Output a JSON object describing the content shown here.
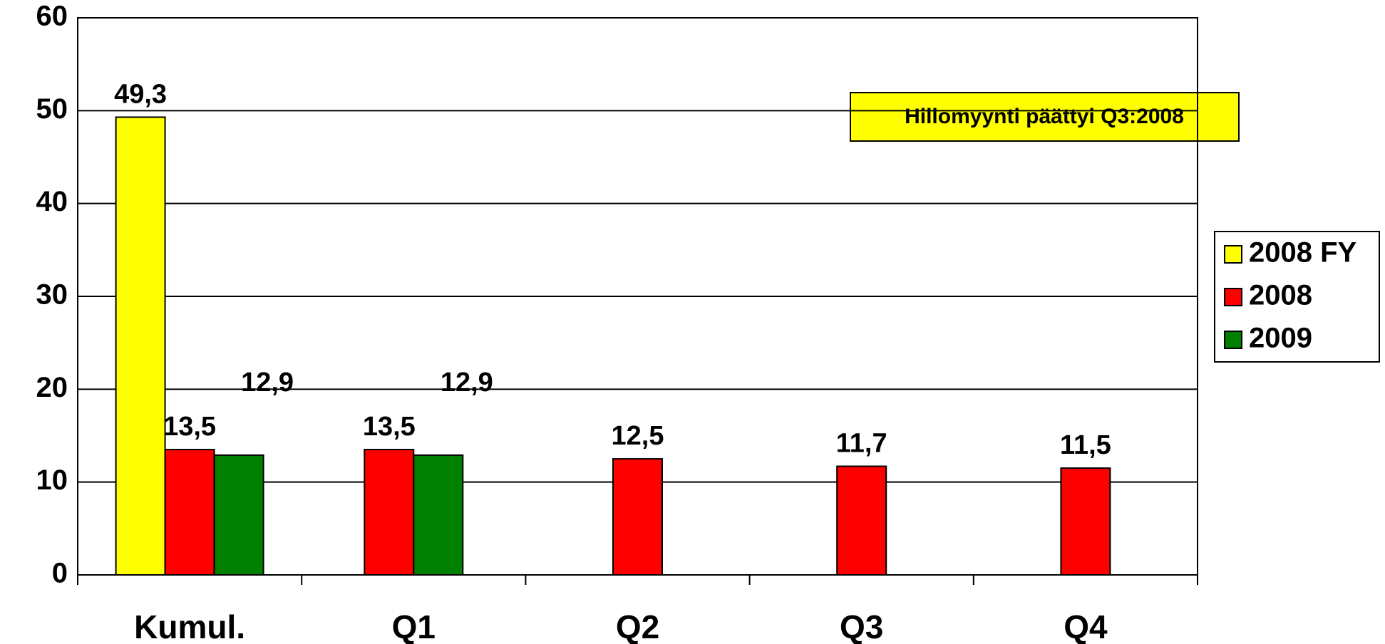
{
  "chart_data": {
    "type": "bar",
    "categories": [
      "Kumul.",
      "Q1",
      "Q2",
      "Q3",
      "Q4"
    ],
    "series": [
      {
        "name": "2008 FY",
        "color": "#ffff00",
        "values": [
          49.3,
          null,
          null,
          null,
          null
        ],
        "value_labels": [
          "49,3",
          null,
          null,
          null,
          null
        ]
      },
      {
        "name": "2008",
        "color": "#ff0000",
        "values": [
          13.5,
          13.5,
          12.5,
          11.7,
          11.5
        ],
        "value_labels": [
          "13,5",
          "13,5",
          "12,5",
          "11,7",
          "11,5"
        ]
      },
      {
        "name": "2009",
        "color": "#008000",
        "values": [
          12.9,
          12.9,
          null,
          null,
          null
        ],
        "value_labels": [
          "12,9",
          "12,9",
          null,
          null,
          null
        ]
      }
    ],
    "ylim": [
      0,
      60
    ],
    "yticks": [
      0,
      10,
      20,
      30,
      40,
      50,
      60
    ],
    "grid": true,
    "legend": "right",
    "annotation": "Hillomyynti päättyi Q3:2008"
  }
}
